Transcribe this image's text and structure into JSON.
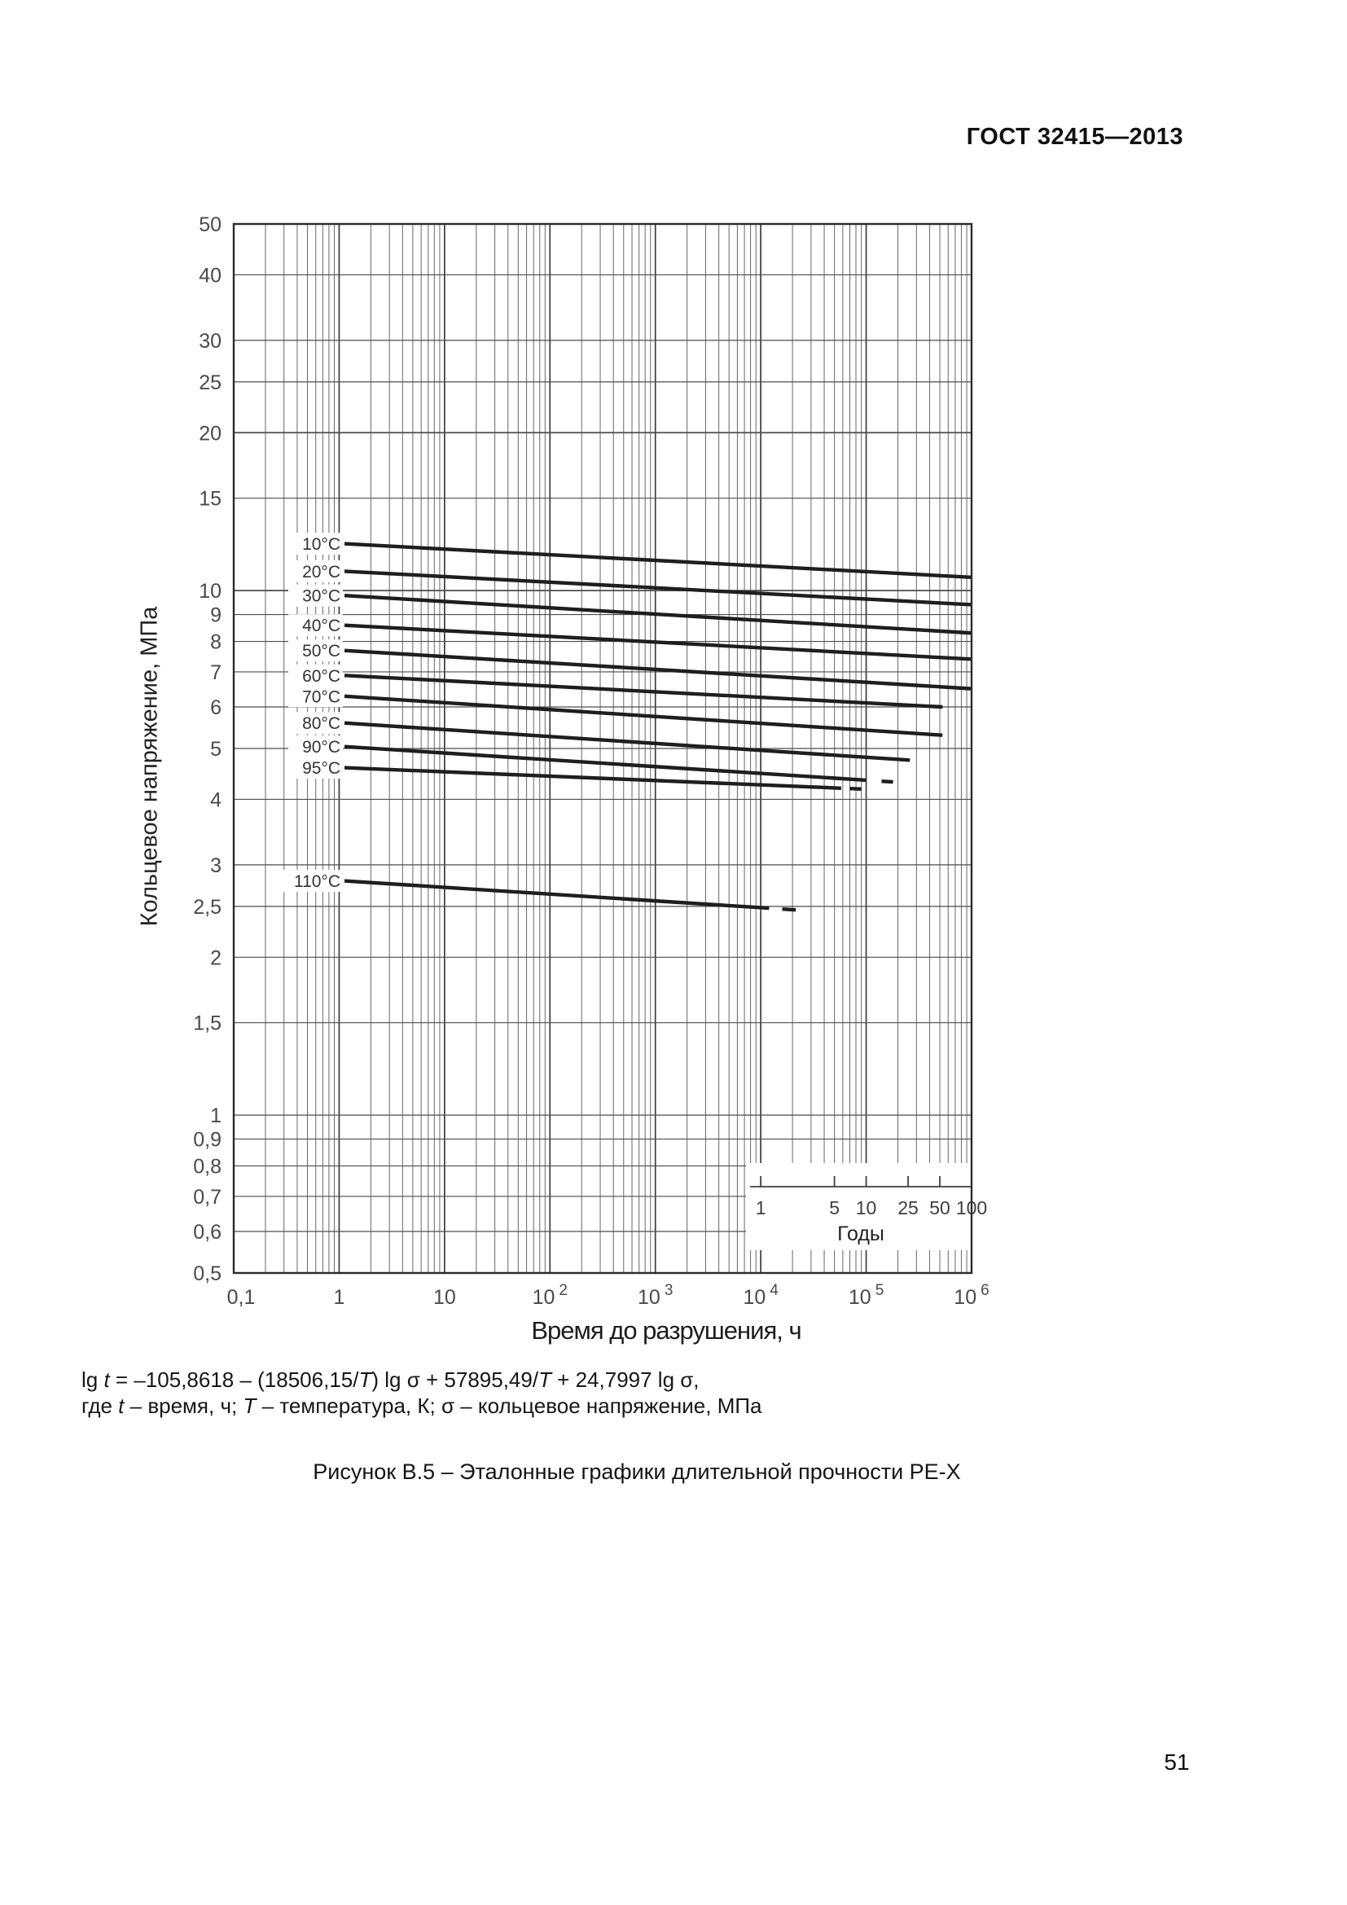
{
  "page": {
    "header": "ГОСТ 32415—2013",
    "caption": "Рисунок В.5 – Эталонные графики длительной прочности PE-X",
    "page_number": "51",
    "formula": {
      "line1": [
        {
          "text": "lg "
        },
        {
          "text": "t",
          "italic": true
        },
        {
          "text": " = –105,8618 – (18506,15/"
        },
        {
          "text": "T",
          "italic": true
        },
        {
          "text": ") lg σ + 57895,49/"
        },
        {
          "text": "T",
          "italic": true
        },
        {
          "text": " + 24,7997 lg σ,"
        }
      ],
      "line2": [
        {
          "text": "где "
        },
        {
          "text": "t",
          "italic": true
        },
        {
          "text": " – время, ч; "
        },
        {
          "text": "T",
          "italic": true
        },
        {
          "text": " – температура, К; σ – кольцевое напряжение, МПа"
        }
      ]
    }
  },
  "chart_data": {
    "type": "line",
    "title": "",
    "xlabel": "Время до разрушения, ч",
    "ylabel": "Кольцевое напряжение, МПа",
    "x_scale": "log",
    "y_scale": "log",
    "xlim": [
      0.1,
      1000000
    ],
    "ylim": [
      0.5,
      50
    ],
    "grid": true,
    "x_ticks": [
      {
        "label": "0,1",
        "value": 0.1
      },
      {
        "label": "1",
        "value": 1
      },
      {
        "label": "10",
        "value": 10
      },
      {
        "base": "10",
        "exp": "2",
        "value": 100
      },
      {
        "base": "10",
        "exp": "3",
        "value": 1000
      },
      {
        "base": "10",
        "exp": "4",
        "value": 10000
      },
      {
        "base": "10",
        "exp": "5",
        "value": 100000
      },
      {
        "base": "10",
        "exp": "6",
        "value": 1000000
      }
    ],
    "y_ticks": [
      {
        "label": "50",
        "value": 50
      },
      {
        "label": "40",
        "value": 40
      },
      {
        "label": "30",
        "value": 30
      },
      {
        "label": "25",
        "value": 25
      },
      {
        "label": "20",
        "value": 20
      },
      {
        "label": "15",
        "value": 15
      },
      {
        "label": "10",
        "value": 10
      },
      {
        "label": "9",
        "value": 9
      },
      {
        "label": "8",
        "value": 8
      },
      {
        "label": "7",
        "value": 7
      },
      {
        "label": "6",
        "value": 6
      },
      {
        "label": "5",
        "value": 5
      },
      {
        "label": "4",
        "value": 4
      },
      {
        "label": "3",
        "value": 3
      },
      {
        "label": "2,5",
        "value": 2.5
      },
      {
        "label": "2",
        "value": 2
      },
      {
        "label": "1,5",
        "value": 1.5
      },
      {
        "label": "1",
        "value": 1
      },
      {
        "label": "0,9",
        "value": 0.9
      },
      {
        "label": "0,8",
        "value": 0.8
      },
      {
        "label": "0,7",
        "value": 0.7
      },
      {
        "label": "0,6",
        "value": 0.6
      },
      {
        "label": "0,5",
        "value": 0.5
      }
    ],
    "series": [
      {
        "name": "10°C",
        "temperature_c": 10,
        "points": [
          [
            1,
            12.3
          ],
          [
            1000000,
            10.6
          ]
        ],
        "dash": null
      },
      {
        "name": "20°C",
        "temperature_c": 20,
        "points": [
          [
            1,
            10.9
          ],
          [
            1000000,
            9.4
          ]
        ],
        "dash": null
      },
      {
        "name": "30°C",
        "temperature_c": 30,
        "points": [
          [
            1,
            9.8
          ],
          [
            1000000,
            8.3
          ]
        ],
        "dash": null
      },
      {
        "name": "40°C",
        "temperature_c": 40,
        "points": [
          [
            1,
            8.6
          ],
          [
            1000000,
            7.4
          ]
        ],
        "dash": null
      },
      {
        "name": "50°C",
        "temperature_c": 50,
        "points": [
          [
            1,
            7.7
          ],
          [
            1000000,
            6.5
          ]
        ],
        "dash": null
      },
      {
        "name": "60°C",
        "temperature_c": 60,
        "points": [
          [
            1,
            6.9
          ],
          [
            530000,
            6.0
          ]
        ],
        "dash": null
      },
      {
        "name": "70°C",
        "temperature_c": 70,
        "points": [
          [
            1,
            6.3
          ],
          [
            530000,
            5.3
          ]
        ],
        "dash": null
      },
      {
        "name": "80°C",
        "temperature_c": 80,
        "points": [
          [
            1,
            5.6
          ],
          [
            260000,
            4.75
          ]
        ],
        "dash": null
      },
      {
        "name": "90°C",
        "temperature_c": 90,
        "points": [
          [
            1,
            5.05
          ],
          [
            100000,
            4.35
          ]
        ],
        "dash": [
          140000,
          180000
        ]
      },
      {
        "name": "95°C",
        "temperature_c": 95,
        "points": [
          [
            1,
            4.6
          ],
          [
            58000,
            4.2
          ]
        ],
        "dash": [
          70000,
          90000
        ]
      },
      {
        "name": "110°C",
        "temperature_c": 110,
        "points": [
          [
            1,
            2.8
          ],
          [
            12000,
            2.48
          ]
        ],
        "dash": [
          16000,
          21500
        ]
      }
    ],
    "years_scale": {
      "label": "Годы",
      "ticks": [
        1,
        5,
        10,
        25,
        50,
        100
      ],
      "hours_per_year": 10000
    }
  }
}
